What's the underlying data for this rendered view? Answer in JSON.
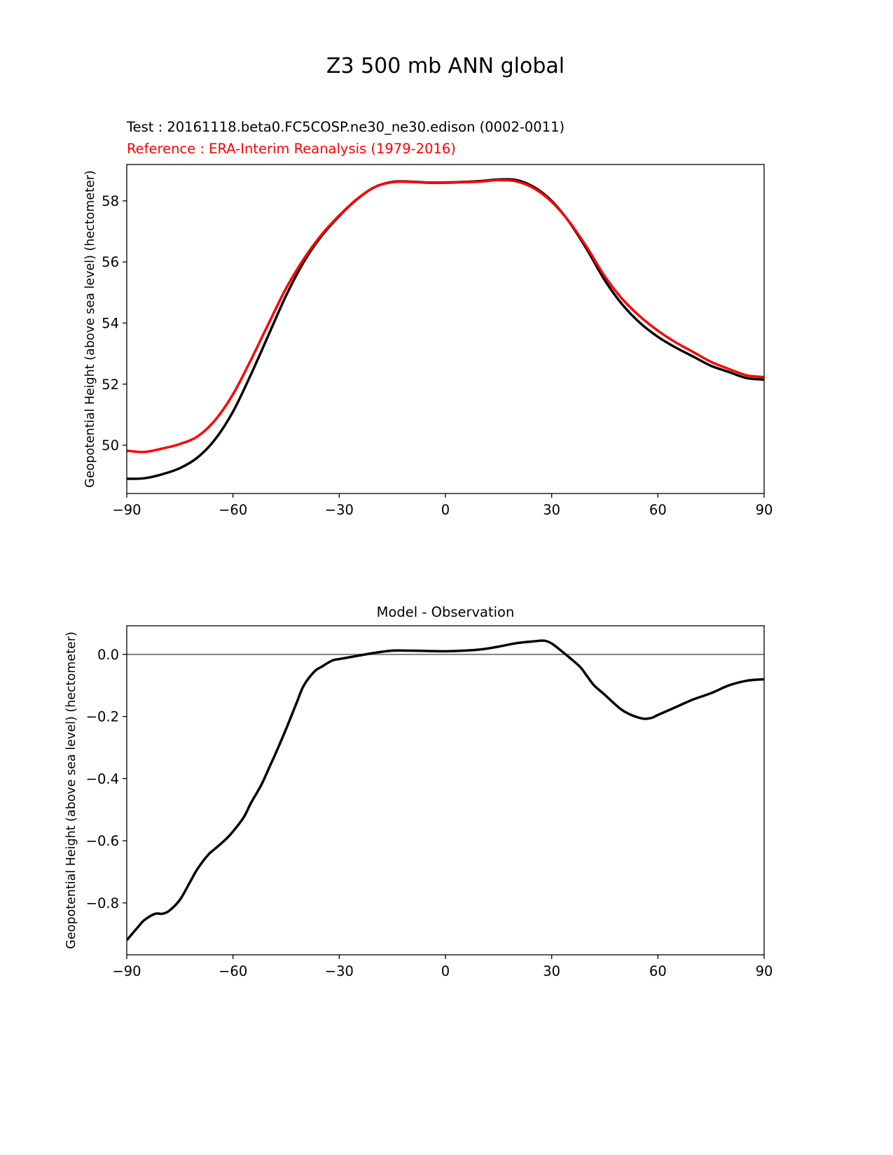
{
  "chart_data": [
    {
      "type": "line",
      "suptitle": "Z3 500 mb ANN global",
      "title_test": "Test : 20161118.beta0.FC5COSP.ne30_ne30.edison (0002-0011)",
      "title_reference": "Reference : ERA-Interim Reanalysis (1979-2016)",
      "xlabel": "",
      "ylabel": "Geopotential Height (above sea level) (hectometer)",
      "xlim": [
        -90,
        90
      ],
      "ylim": [
        48.42,
        59.19
      ],
      "xticks": [
        -90,
        -60,
        -30,
        0,
        30,
        60,
        90
      ],
      "xtick_labels": [
        "−90",
        "−60",
        "−30",
        "0",
        "30",
        "60",
        "90"
      ],
      "yticks": [
        50,
        52,
        54,
        56,
        58
      ],
      "ytick_labels": [
        "50",
        "52",
        "54",
        "56",
        "58"
      ],
      "grid": false,
      "x": [
        -90,
        -85,
        -80,
        -75,
        -70,
        -65,
        -60,
        -55,
        -50,
        -45,
        -40,
        -35,
        -30,
        -25,
        -20,
        -15,
        -10,
        -5,
        0,
        5,
        10,
        15,
        20,
        25,
        30,
        35,
        40,
        45,
        50,
        55,
        60,
        65,
        70,
        75,
        80,
        85,
        90
      ],
      "series": [
        {
          "name": "Test",
          "color": "#000000",
          "values": [
            48.9,
            48.92,
            49.05,
            49.25,
            49.6,
            50.2,
            51.1,
            52.3,
            53.6,
            54.9,
            56.0,
            56.85,
            57.5,
            58.05,
            58.45,
            58.62,
            58.63,
            58.6,
            58.6,
            58.62,
            58.65,
            58.7,
            58.68,
            58.45,
            58.0,
            57.3,
            56.4,
            55.4,
            54.6,
            54.0,
            53.55,
            53.2,
            52.9,
            52.6,
            52.4,
            52.2,
            52.15
          ]
        },
        {
          "name": "Reference",
          "color": "#ff0000",
          "values": [
            49.82,
            49.78,
            49.89,
            50.04,
            50.29,
            50.83,
            51.67,
            52.78,
            53.97,
            55.14,
            56.1,
            56.89,
            57.52,
            58.06,
            58.45,
            58.61,
            58.62,
            58.59,
            58.59,
            58.61,
            58.63,
            58.68,
            58.64,
            58.41,
            57.97,
            57.31,
            56.47,
            55.53,
            54.78,
            54.21,
            53.75,
            53.37,
            53.05,
            52.73,
            52.5,
            52.29,
            52.23
          ]
        }
      ]
    },
    {
      "type": "line",
      "title": "Model - Observation",
      "xlabel": "",
      "ylabel": "Geopotential Height (above sea level) (hectometer)",
      "xlim": [
        -90,
        90
      ],
      "ylim": [
        -0.967,
        0.092
      ],
      "xticks": [
        -90,
        -60,
        -30,
        0,
        30,
        60,
        90
      ],
      "xtick_labels": [
        "−90",
        "−60",
        "−30",
        "0",
        "30",
        "60",
        "90"
      ],
      "yticks": [
        0,
        -0.2,
        -0.4,
        -0.6,
        -0.8
      ],
      "ytick_labels": [
        "0.0",
        "−0.2",
        "−0.4",
        "−0.6",
        "−0.8"
      ],
      "grid": false,
      "zero_line_color": "#808080",
      "x": [
        -90,
        -87,
        -85,
        -82,
        -80,
        -78,
        -75,
        -72,
        -70,
        -67,
        -65,
        -62,
        -60,
        -57,
        -55,
        -52,
        -50,
        -48,
        -45,
        -42,
        -40,
        -37,
        -35,
        -32,
        -30,
        -25,
        -20,
        -15,
        -10,
        -5,
        0,
        5,
        10,
        15,
        20,
        25,
        28,
        30,
        32,
        35,
        38,
        40,
        42,
        45,
        50,
        55,
        58,
        60,
        65,
        70,
        75,
        80,
        85,
        90
      ],
      "series": [
        {
          "name": "Model - Observation",
          "color": "#000000",
          "values": [
            -0.92,
            -0.88,
            -0.855,
            -0.835,
            -0.835,
            -0.825,
            -0.79,
            -0.73,
            -0.69,
            -0.645,
            -0.625,
            -0.595,
            -0.57,
            -0.525,
            -0.48,
            -0.42,
            -0.37,
            -0.32,
            -0.24,
            -0.155,
            -0.1,
            -0.055,
            -0.04,
            -0.02,
            -0.015,
            -0.005,
            0.005,
            0.012,
            0.012,
            0.011,
            0.01,
            0.012,
            0.016,
            0.025,
            0.036,
            0.042,
            0.044,
            0.035,
            0.018,
            -0.01,
            -0.04,
            -0.07,
            -0.1,
            -0.13,
            -0.18,
            -0.205,
            -0.205,
            -0.195,
            -0.17,
            -0.145,
            -0.125,
            -0.1,
            -0.085,
            -0.08
          ]
        }
      ]
    }
  ]
}
